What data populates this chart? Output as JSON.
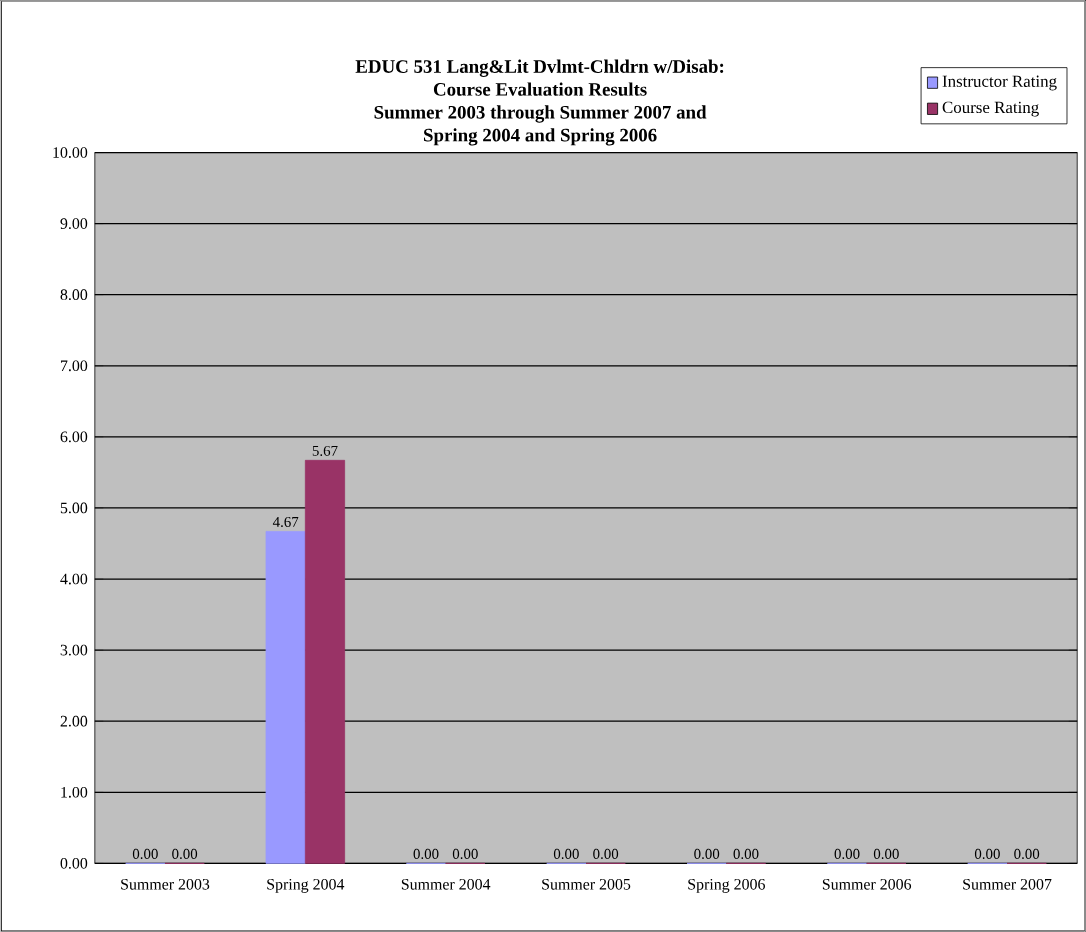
{
  "chart_data": {
    "type": "bar",
    "title": "EDUC 531 Lang&Lit Dvlmt-Chldrn w/Disab:\nCourse Evaluation Results\nSummer 2003 through Summer 2007 and\nSpring 2004 and Spring 2006",
    "categories": [
      "Summer 2003",
      "Spring 2004",
      "Summer 2004",
      "Summer 2005",
      "Spring 2006",
      "Summer 2006",
      "Summer 2007"
    ],
    "series": [
      {
        "name": "Instructor Rating",
        "color": "#9999ff",
        "values": [
          0,
          4.67,
          0,
          0,
          0,
          0,
          0
        ],
        "value_labels": [
          "0.00",
          "4.67",
          "0.00",
          "0.00",
          "0.00",
          "0.00",
          "0.00"
        ]
      },
      {
        "name": "Course Rating",
        "color": "#993366",
        "values": [
          0,
          5.67,
          0,
          0,
          0,
          0,
          0
        ],
        "value_labels": [
          "0.00",
          "5.67",
          "0.00",
          "0.00",
          "0.00",
          "0.00",
          "0.00"
        ]
      }
    ],
    "ylim": [
      0,
      10
    ],
    "yticks": [
      {
        "value": 0,
        "label": "0.00"
      },
      {
        "value": 1,
        "label": "1.00"
      },
      {
        "value": 2,
        "label": "2.00"
      },
      {
        "value": 3,
        "label": "3.00"
      },
      {
        "value": 4,
        "label": "4.00"
      },
      {
        "value": 5,
        "label": "5.00"
      },
      {
        "value": 6,
        "label": "6.00"
      },
      {
        "value": 7,
        "label": "7.00"
      },
      {
        "value": 8,
        "label": "8.00"
      },
      {
        "value": 9,
        "label": "9.00"
      },
      {
        "value": 10,
        "label": "10.00"
      }
    ],
    "grid": "y",
    "legend": "top right"
  }
}
